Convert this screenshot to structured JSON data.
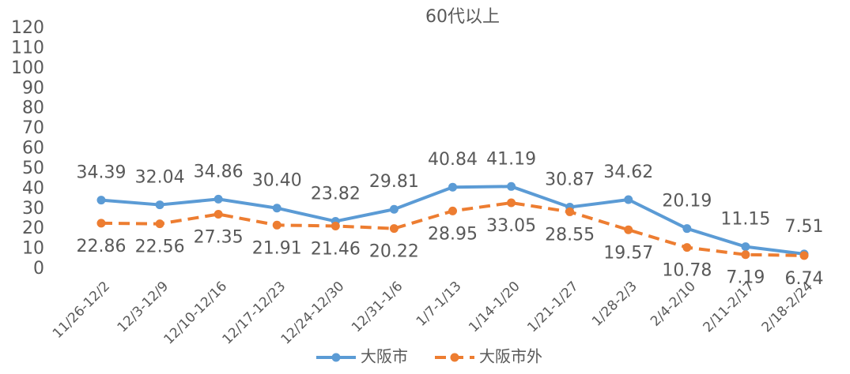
{
  "chart_data": {
    "type": "line",
    "title": "60代以上",
    "categories": [
      "11/26-12/2",
      "12/3-12/9",
      "12/10-12/16",
      "12/17-12/23",
      "12/24-12/30",
      "12/31-1/6",
      "1/7-1/13",
      "1/14-1/20",
      "1/21-1/27",
      "1/28-2/3",
      "2/4-2/10",
      "2/11-2/17",
      "2/18-2/24"
    ],
    "series": [
      {
        "name": "大阪市",
        "color": "#5b9bd5",
        "dashed": false,
        "values": [
          34.39,
          32.04,
          34.86,
          30.4,
          23.82,
          29.81,
          40.84,
          41.19,
          30.87,
          34.62,
          20.19,
          11.15,
          7.51
        ],
        "value_labels": [
          "34.39",
          "32.04",
          "34.86",
          "30.40",
          "23.82",
          "29.81",
          "40.84",
          "41.19",
          "30.87",
          "34.62",
          "20.19",
          "11.15",
          "7.51"
        ]
      },
      {
        "name": "大阪市外",
        "color": "#ed7d31",
        "dashed": true,
        "values": [
          22.86,
          22.56,
          27.35,
          21.91,
          21.46,
          20.22,
          28.95,
          33.05,
          28.55,
          19.57,
          10.78,
          7.19,
          6.74
        ],
        "value_labels": [
          "22.86",
          "22.56",
          "27.35",
          "21.91",
          "21.46",
          "20.22",
          "28.95",
          "33.05",
          "28.55",
          "19.57",
          "10.78",
          "7.19",
          "6.74"
        ]
      }
    ],
    "ylim": [
      0,
      120
    ],
    "yticks": [
      0,
      10,
      20,
      30,
      40,
      50,
      60,
      70,
      80,
      90,
      100,
      110,
      120
    ],
    "grid": false,
    "legend": "bottom"
  }
}
